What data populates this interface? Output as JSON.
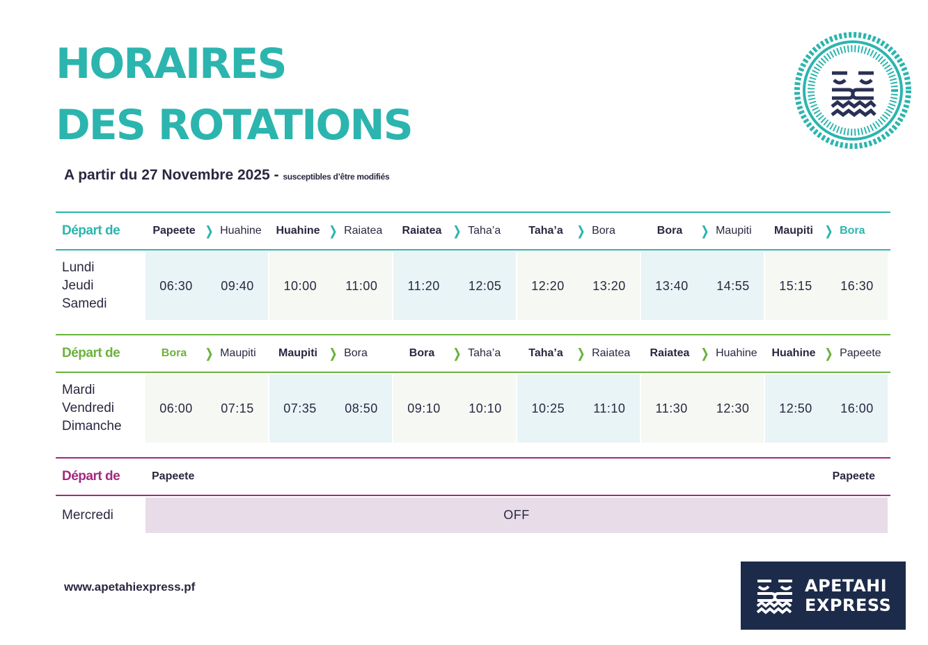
{
  "title": {
    "line1": "HORAIRES",
    "line2": "DES ROTATIONS"
  },
  "subtitle": {
    "main": "A partir du 27  Novembre 2025 - ",
    "note": "susceptibles d’être modifiés"
  },
  "colors": {
    "teal": "#2bb5ae",
    "green": "#6ab23c",
    "magenta": "#a3287f",
    "navy": "#1d2b4a"
  },
  "tables": [
    {
      "header": "Départ de",
      "days": [
        "Lundi",
        "Jeudi",
        "Samedi"
      ],
      "legs": [
        {
          "from": "Papeete",
          "to": "Huahine",
          "dep": "06:30",
          "arr": "09:40"
        },
        {
          "from": "Huahine",
          "to": "Raiatea",
          "dep": "10:00",
          "arr": "11:00"
        },
        {
          "from": "Raiatea",
          "to": "Taha’a",
          "dep": "11:20",
          "arr": "12:05"
        },
        {
          "from": "Taha’a",
          "to": "Bora",
          "dep": "12:20",
          "arr": "13:20"
        },
        {
          "from": "Bora",
          "to": "Maupiti",
          "dep": "13:40",
          "arr": "14:55"
        },
        {
          "from": "Maupiti",
          "to": "Bora",
          "dep": "15:15",
          "arr": "16:30"
        }
      ]
    },
    {
      "header": "Départ de",
      "days": [
        "Mardi",
        "Vendredi",
        "Dimanche"
      ],
      "legs": [
        {
          "from": "Bora",
          "to": "Maupiti",
          "dep": "06:00",
          "arr": "07:15"
        },
        {
          "from": "Maupiti",
          "to": "Bora",
          "dep": "07:35",
          "arr": "08:50"
        },
        {
          "from": "Bora",
          "to": "Taha’a",
          "dep": "09:10",
          "arr": "10:10"
        },
        {
          "from": "Taha’a",
          "to": "Raiatea",
          "dep": "10:25",
          "arr": "11:10"
        },
        {
          "from": "Raiatea",
          "to": "Huahine",
          "dep": "11:30",
          "arr": "12:30"
        },
        {
          "from": "Huahine",
          "to": "Papeete",
          "dep": "12:50",
          "arr": "16:00"
        }
      ]
    },
    {
      "header": "Départ de",
      "days": [
        "Mercredi"
      ],
      "from": "Papeete",
      "to": "Papeete",
      "status": "OFF"
    }
  ],
  "footer": {
    "url": "www.apetahiexpress.pf",
    "brand_line1": "APETAHI",
    "brand_line2": "EXPRESS"
  }
}
